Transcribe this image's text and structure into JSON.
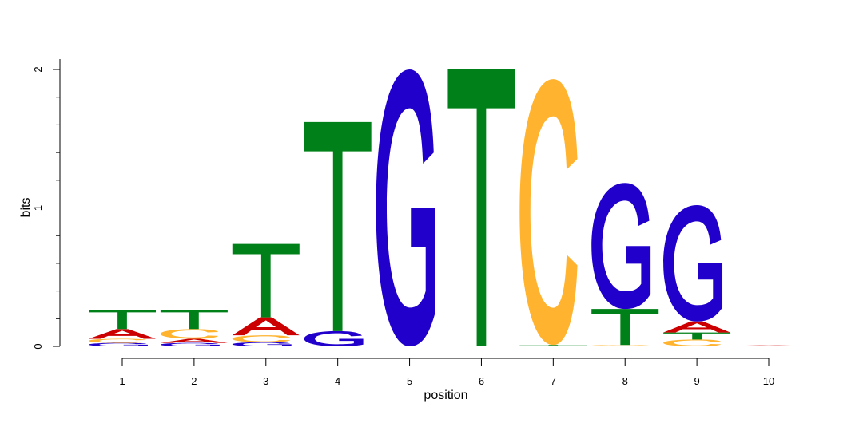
{
  "chart_data": {
    "type": "sequence_logo",
    "xlabel": "position",
    "ylabel": "bits",
    "ylim": [
      0,
      2
    ],
    "y_ticks": [
      "0",
      "1",
      "2"
    ],
    "x_ticks": [
      "1",
      "2",
      "3",
      "4",
      "5",
      "6",
      "7",
      "8",
      "9",
      "10"
    ],
    "colors": {
      "A": "#cc0000",
      "C": "#ffb32e",
      "G": "#2200cc",
      "T": "#008018"
    },
    "positions": [
      {
        "pos": "1",
        "letters": [
          {
            "l": "G",
            "h": 0.025
          },
          {
            "l": "C",
            "h": 0.03
          },
          {
            "l": "A",
            "h": 0.07
          },
          {
            "l": "T",
            "h": 0.14
          }
        ]
      },
      {
        "pos": "2",
        "letters": [
          {
            "l": "G",
            "h": 0.025
          },
          {
            "l": "A",
            "h": 0.03
          },
          {
            "l": "C",
            "h": 0.07
          },
          {
            "l": "T",
            "h": 0.14
          }
        ]
      },
      {
        "pos": "3",
        "letters": [
          {
            "l": "G",
            "h": 0.03
          },
          {
            "l": "C",
            "h": 0.05
          },
          {
            "l": "A",
            "h": 0.13
          },
          {
            "l": "T",
            "h": 0.53
          }
        ]
      },
      {
        "pos": "4",
        "letters": [
          {
            "l": "G",
            "h": 0.11
          },
          {
            "l": "T",
            "h": 1.51
          }
        ]
      },
      {
        "pos": "5",
        "letters": [
          {
            "l": "G",
            "h": 2.0
          }
        ]
      },
      {
        "pos": "6",
        "letters": [
          {
            "l": "T",
            "h": 2.0
          }
        ]
      },
      {
        "pos": "7",
        "letters": [
          {
            "l": "T",
            "h": 0.01
          },
          {
            "l": "C",
            "h": 1.92
          }
        ]
      },
      {
        "pos": "8",
        "letters": [
          {
            "l": "C",
            "h": 0.01
          },
          {
            "l": "T",
            "h": 0.26
          },
          {
            "l": "G",
            "h": 0.91
          }
        ]
      },
      {
        "pos": "9",
        "letters": [
          {
            "l": "C",
            "h": 0.05
          },
          {
            "l": "T",
            "h": 0.05
          },
          {
            "l": "A",
            "h": 0.08
          },
          {
            "l": "G",
            "h": 0.84
          }
        ]
      },
      {
        "pos": "10",
        "letters": [
          {
            "l": "G",
            "h": 0.004
          },
          {
            "l": "A",
            "h": 0.004
          }
        ]
      }
    ]
  }
}
